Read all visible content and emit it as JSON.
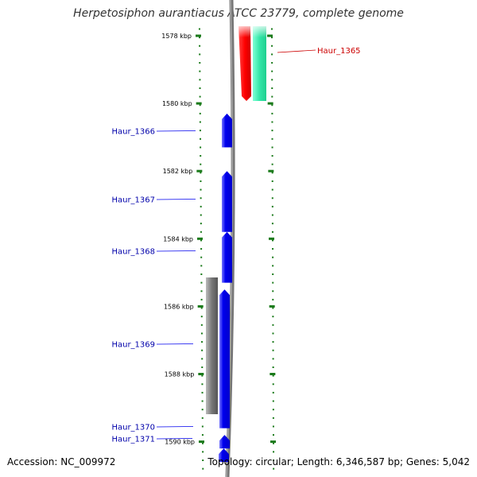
{
  "title": "Herpetosiphon aurantiacus ATCC 23779, complete genome",
  "footer": {
    "accession": "Accession: NC_009972",
    "summary": "Topology: circular; Length: 6,346,587 bp; Genes: 5,042"
  },
  "colors": {
    "plus_strand": "#0000ee",
    "minus_strand": "#ff0000",
    "tick": "#1a7a1a",
    "backbone": "#777777",
    "plus_label": "#0000aa",
    "minus_label": "#cc0000"
  },
  "scale": {
    "unit": "kbp",
    "labeled_ticks": [
      {
        "kbp": 1578,
        "label": "1578 kbp"
      },
      {
        "kbp": 1580,
        "label": "1580 kbp"
      },
      {
        "kbp": 1582,
        "label": "1582 kbp"
      },
      {
        "kbp": 1584,
        "label": "1584 kbp"
      },
      {
        "kbp": 1586,
        "label": "1586 kbp"
      },
      {
        "kbp": 1588,
        "label": "1588 kbp"
      },
      {
        "kbp": 1590,
        "label": "1590 kbp"
      }
    ]
  },
  "genes": [
    {
      "name": "Haur_1365",
      "strand": "-",
      "start_kbp": 1577.6,
      "end_kbp": 1579.9
    },
    {
      "name": "Haur_1366",
      "strand": "+",
      "start_kbp": 1580.3,
      "end_kbp": 1581.3
    },
    {
      "name": "Haur_1367",
      "strand": "+",
      "start_kbp": 1582.0,
      "end_kbp": 1583.8
    },
    {
      "name": "Haur_1368",
      "strand": "+",
      "start_kbp": 1583.8,
      "end_kbp": 1585.3
    },
    {
      "name": "Haur_1369",
      "strand": "+",
      "start_kbp": 1585.5,
      "end_kbp": 1589.6
    },
    {
      "name": "Haur_1370",
      "strand": "+",
      "start_kbp": 1589.8,
      "end_kbp": 1590.2
    },
    {
      "name": "Haur_1371",
      "strand": "+",
      "start_kbp": 1590.2,
      "end_kbp": 1590.6
    }
  ]
}
